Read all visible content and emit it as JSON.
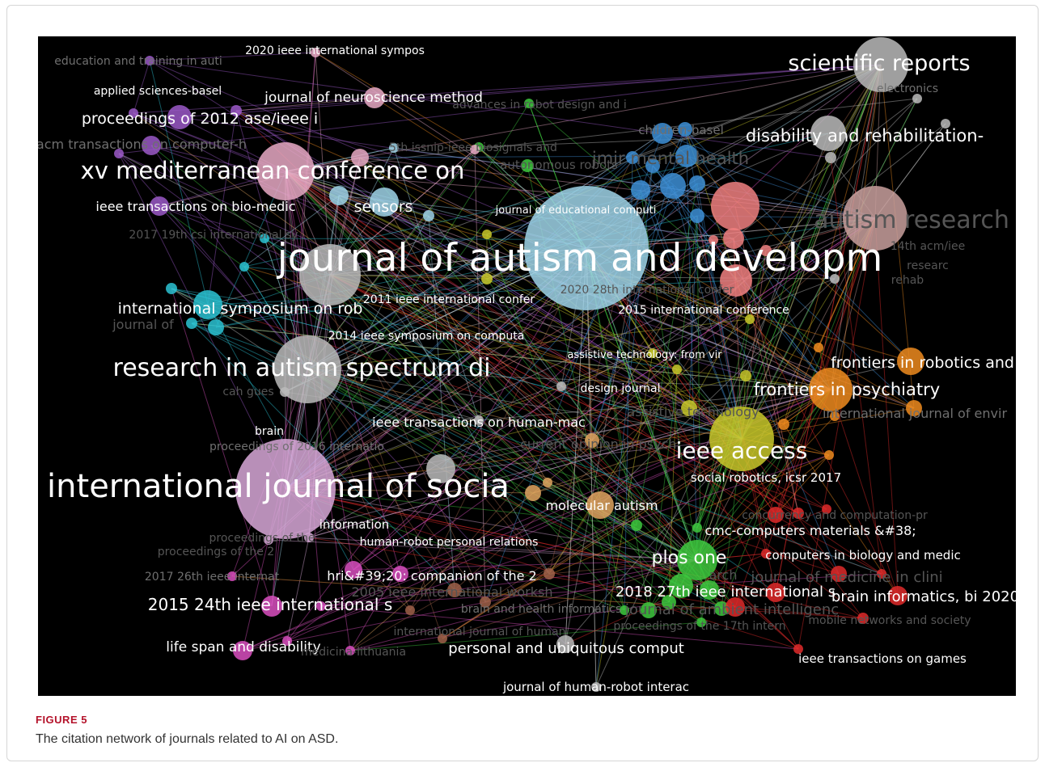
{
  "figure": {
    "label": "FIGURE 5",
    "caption": "The citation network of journals related to AI on ASD."
  },
  "colors": {
    "background": "#000000",
    "purple": "#9b59c8",
    "pink": "#e7a9c4",
    "lightpink": "#d8a8d8",
    "cyan": "#2bc3d4",
    "lightblue": "#9fd4e8",
    "blue": "#3d8fd6",
    "green": "#3ec93e",
    "yellowgreen": "#c8c82a",
    "orange": "#ef8b1e",
    "red": "#e02a2a",
    "salmon": "#f08080",
    "tan": "#e0a560",
    "brown": "#a0624a",
    "gray": "#bbbbbb",
    "rosegray": "#c9a09d",
    "magenta": "#d94fbf"
  },
  "labels": [
    {
      "id": "l01",
      "text": "2020 ieee international sympos"
    },
    {
      "id": "l02",
      "text": "education and training in auti"
    },
    {
      "id": "l03",
      "text": "applied sciences-basel"
    },
    {
      "id": "l04",
      "text": "journal of neuroscience method"
    },
    {
      "id": "l05",
      "text": "advances in robot design and i"
    },
    {
      "id": "l06",
      "text": "scientific reports"
    },
    {
      "id": "l07",
      "text": "electronics"
    },
    {
      "id": "l08",
      "text": "proceedings of 2012 ase/ieee i"
    },
    {
      "id": "l09",
      "text": "children-basel"
    },
    {
      "id": "l10",
      "text": "disability and rehabilitation-"
    },
    {
      "id": "l11",
      "text": "acm transactions on computer-h"
    },
    {
      "id": "l12",
      "text": "5th issnip-ieee biosignals and"
    },
    {
      "id": "l13",
      "text": "autonomous robots"
    },
    {
      "id": "l14",
      "text": "jmir mental health"
    },
    {
      "id": "l15",
      "text": "xv mediterranean conference on"
    },
    {
      "id": "l16",
      "text": "ieee transactions on bio-medic"
    },
    {
      "id": "l17",
      "text": "sensors"
    },
    {
      "id": "l18",
      "text": "journal of educational computi"
    },
    {
      "id": "l19",
      "text": "autism research"
    },
    {
      "id": "l20",
      "text": "2017 19th csi international sy"
    },
    {
      "id": "l21",
      "text": "14th acm/iee"
    },
    {
      "id": "l22",
      "text": "journal of autism and developm"
    },
    {
      "id": "l23",
      "text": "researc"
    },
    {
      "id": "l24",
      "text": "rehab"
    },
    {
      "id": "l25",
      "text": "2020 28th international confer"
    },
    {
      "id": "l26",
      "text": "2011 ieee international confer"
    },
    {
      "id": "l27",
      "text": "international symposium on rob"
    },
    {
      "id": "l28",
      "text": "2015 international conference"
    },
    {
      "id": "l29",
      "text": "journal of"
    },
    {
      "id": "l30",
      "text": "2014 ieee symposium on computa"
    },
    {
      "id": "l31",
      "text": "assistive technology: from vir"
    },
    {
      "id": "l32",
      "text": "frontiers in robotics and ai"
    },
    {
      "id": "l33",
      "text": "research in autism spectrum di"
    },
    {
      "id": "l34",
      "text": "design journal"
    },
    {
      "id": "l35",
      "text": "frontiers in psychiatry"
    },
    {
      "id": "l36",
      "text": "cah gues"
    },
    {
      "id": "l37",
      "text": "assistive technology"
    },
    {
      "id": "l38",
      "text": "international journal of envir"
    },
    {
      "id": "l39",
      "text": "ieee transactions on human-mac"
    },
    {
      "id": "l40",
      "text": "brain"
    },
    {
      "id": "l41",
      "text": "current opinion in psychi"
    },
    {
      "id": "l42",
      "text": "proceedings of 2016 internatio"
    },
    {
      "id": "l43",
      "text": "ieee access"
    },
    {
      "id": "l44",
      "text": "social robotics, icsr 2017"
    },
    {
      "id": "l45",
      "text": "international journal of socia"
    },
    {
      "id": "l46",
      "text": "molecular autism"
    },
    {
      "id": "l47",
      "text": "concurrency and computation-pr"
    },
    {
      "id": "l48",
      "text": "information"
    },
    {
      "id": "l49",
      "text": "cmc-computers materials &#38;"
    },
    {
      "id": "l50",
      "text": "proceedings of the"
    },
    {
      "id": "l51",
      "text": "human-robot personal relations"
    },
    {
      "id": "l52",
      "text": "plos one"
    },
    {
      "id": "l53",
      "text": "computers in biology and medic"
    },
    {
      "id": "l54",
      "text": "proceedings of the 2"
    },
    {
      "id": "l55",
      "text": "2017 26th ieee internat"
    },
    {
      "id": "l56",
      "text": "hri&#39;20: companion of the 2"
    },
    {
      "id": "l57",
      "text": "arch"
    },
    {
      "id": "l58",
      "text": "journal of medicine in clini"
    },
    {
      "id": "l59",
      "text": "2005 ieee international worksh"
    },
    {
      "id": "l60",
      "text": "2018 27th ieee international s"
    },
    {
      "id": "l61",
      "text": "brain informatics, bi 2020"
    },
    {
      "id": "l62",
      "text": "2015 24th ieee international s"
    },
    {
      "id": "l63",
      "text": "brain and health informatics"
    },
    {
      "id": "l64",
      "text": "journal of ambient intelligenc"
    },
    {
      "id": "l65",
      "text": "proceedings of the 17th intern"
    },
    {
      "id": "l66",
      "text": "mobile networks and society"
    },
    {
      "id": "l67",
      "text": "international journal of human"
    },
    {
      "id": "l68",
      "text": "life span and disability"
    },
    {
      "id": "l69",
      "text": "medicina-lithuania"
    },
    {
      "id": "l70",
      "text": "personal and ubiquitous comput"
    },
    {
      "id": "l71",
      "text": "ieee transactions on games"
    },
    {
      "id": "l72",
      "text": "journal of human-robot interac"
    }
  ]
}
